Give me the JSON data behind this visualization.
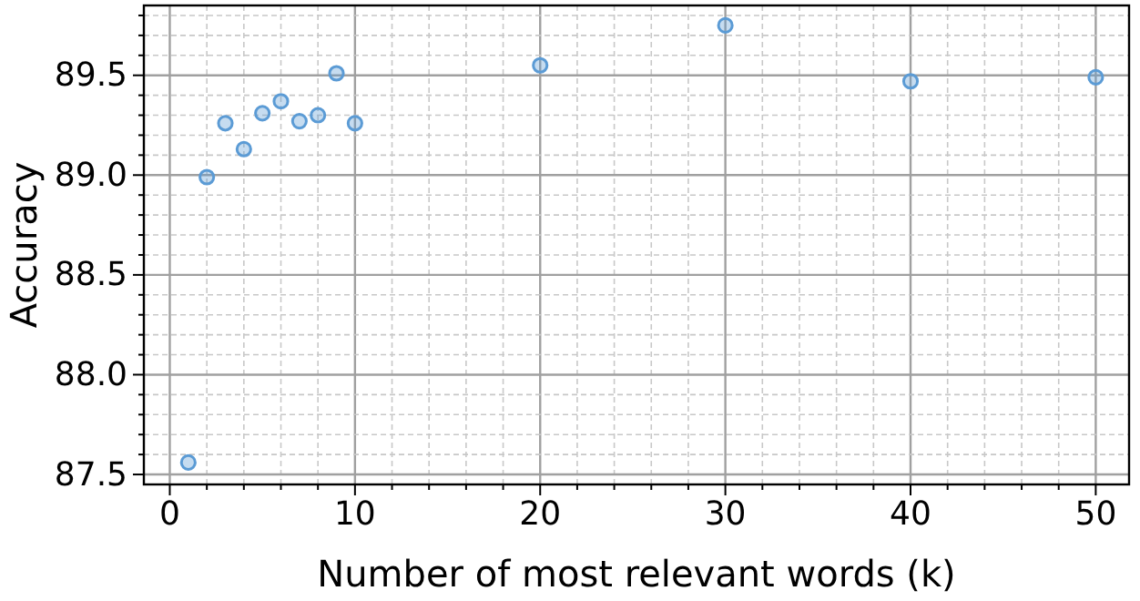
{
  "chart_data": {
    "type": "scatter",
    "xlabel": "Number of most relevant words (k)",
    "ylabel": "Accuracy",
    "x": [
      1,
      2,
      3,
      4,
      5,
      6,
      7,
      8,
      9,
      10,
      20,
      30,
      40,
      50
    ],
    "values": [
      87.56,
      88.99,
      89.26,
      89.13,
      89.31,
      89.37,
      89.27,
      89.3,
      89.51,
      89.26,
      89.55,
      89.75,
      89.47,
      89.49
    ],
    "color": "#5b9bd5",
    "marker": "circle",
    "grid": true,
    "xlim": [
      -1.4,
      51.8
    ],
    "ylim": [
      87.45,
      89.85
    ],
    "xticks": [
      0,
      {
        "value": 2,
        "label": null
      },
      {
        "value": 4,
        "label": null
      },
      {
        "value": 6,
        "label": null
      },
      {
        "value": 8,
        "label": null
      },
      10,
      {
        "value": 12,
        "label": null
      },
      {
        "value": 14,
        "label": null
      },
      {
        "value": 16,
        "label": null
      },
      {
        "value": 18,
        "label": null
      },
      20,
      {
        "value": 22,
        "label": null
      },
      {
        "value": 24,
        "label": null
      },
      {
        "value": 26,
        "label": null
      },
      {
        "value": 28,
        "label": null
      },
      30,
      {
        "value": 32,
        "label": null
      },
      {
        "value": 34,
        "label": null
      },
      {
        "value": 36,
        "label": null
      },
      {
        "value": 38,
        "label": null
      },
      40,
      {
        "value": 42,
        "label": null
      },
      {
        "value": 44,
        "label": null
      },
      {
        "value": 46,
        "label": null
      },
      {
        "value": 48,
        "label": null
      },
      50
    ],
    "yticks": [
      {
        "value": 87.5,
        "label": "87.5"
      },
      {
        "value": 87.6,
        "label": null
      },
      {
        "value": 87.7,
        "label": null
      },
      {
        "value": 87.8,
        "label": null
      },
      {
        "value": 87.9,
        "label": null
      },
      {
        "value": 88.0,
        "label": "88.0"
      },
      {
        "value": 88.1,
        "label": null
      },
      {
        "value": 88.2,
        "label": null
      },
      {
        "value": 88.3,
        "label": null
      },
      {
        "value": 88.4,
        "label": null
      },
      {
        "value": 88.5,
        "label": "88.5"
      },
      {
        "value": 88.6,
        "label": null
      },
      {
        "value": 88.7,
        "label": null
      },
      {
        "value": 88.8,
        "label": null
      },
      {
        "value": 88.9,
        "label": null
      },
      {
        "value": 89.0,
        "label": "89.0"
      },
      {
        "value": 89.1,
        "label": null
      },
      {
        "value": 89.2,
        "label": null
      },
      {
        "value": 89.3,
        "label": null
      },
      {
        "value": 89.4,
        "label": null
      },
      {
        "value": 89.5,
        "label": "89.5"
      },
      {
        "value": 89.6,
        "label": null
      },
      {
        "value": 89.7,
        "label": null
      },
      {
        "value": 89.8,
        "label": null
      }
    ]
  }
}
